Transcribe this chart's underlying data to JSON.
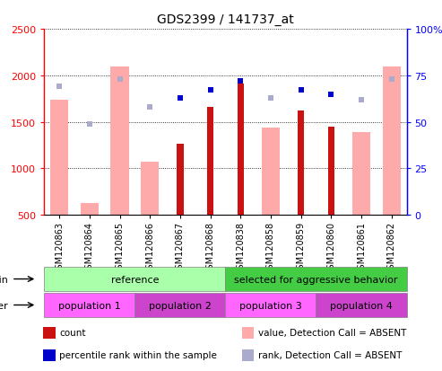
{
  "title": "GDS2399 / 141737_at",
  "samples": [
    "GSM120863",
    "GSM120864",
    "GSM120865",
    "GSM120866",
    "GSM120867",
    "GSM120868",
    "GSM120838",
    "GSM120858",
    "GSM120859",
    "GSM120860",
    "GSM120861",
    "GSM120862"
  ],
  "count_values": [
    0,
    0,
    0,
    0,
    1260,
    1660,
    1910,
    0,
    1620,
    1450,
    0,
    0
  ],
  "absent_value": [
    1740,
    630,
    2100,
    1070,
    0,
    0,
    0,
    1440,
    0,
    0,
    1390,
    2100
  ],
  "percentile_rank": [
    0,
    0,
    0,
    0,
    63,
    67,
    72,
    0,
    67,
    65,
    0,
    0
  ],
  "absent_rank": [
    69,
    49,
    73,
    58,
    0,
    0,
    0,
    63,
    0,
    0,
    62,
    73
  ],
  "ylim_left": [
    500,
    2500
  ],
  "ylim_right": [
    0,
    100
  ],
  "yticks_left": [
    500,
    1000,
    1500,
    2000,
    2500
  ],
  "yticks_right": [
    0,
    25,
    50,
    75,
    100
  ],
  "ytick_labels_right": [
    "0",
    "25",
    "50",
    "75",
    "100%"
  ],
  "color_count": "#cc1111",
  "color_rank": "#0000cc",
  "color_absent_value": "#ffaaaa",
  "color_absent_rank": "#aaaacc",
  "strain_groups": [
    {
      "label": "reference",
      "start": 0,
      "end": 6,
      "color": "#aaffaa"
    },
    {
      "label": "selected for aggressive behavior",
      "start": 6,
      "end": 12,
      "color": "#44cc44"
    }
  ],
  "other_groups": [
    {
      "label": "population 1",
      "start": 0,
      "end": 3,
      "color": "#ff66ff"
    },
    {
      "label": "population 2",
      "start": 3,
      "end": 6,
      "color": "#cc44cc"
    },
    {
      "label": "population 3",
      "start": 6,
      "end": 9,
      "color": "#ff66ff"
    },
    {
      "label": "population 4",
      "start": 9,
      "end": 12,
      "color": "#cc44cc"
    }
  ],
  "legend_items": [
    {
      "label": "count",
      "color": "#cc1111"
    },
    {
      "label": "percentile rank within the sample",
      "color": "#0000cc"
    },
    {
      "label": "value, Detection Call = ABSENT",
      "color": "#ffaaaa"
    },
    {
      "label": "rank, Detection Call = ABSENT",
      "color": "#aaaacc"
    }
  ]
}
